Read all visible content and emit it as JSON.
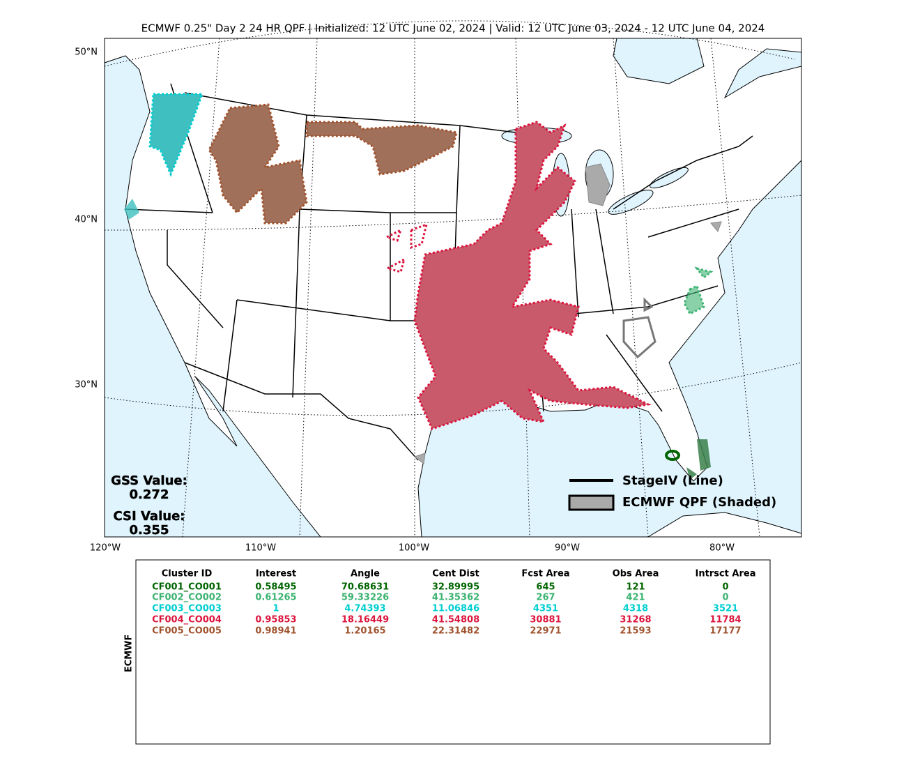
{
  "header": {
    "title": "ECMWF 0.25\" Day 2 24 HR QPF | Initialized: 12 UTC June 02, 2024 | Valid: 12 UTC June 03, 2024 - 12 UTC June 04, 2024"
  },
  "map": {
    "lat_labels": [
      "50°N",
      "40°N",
      "30°N"
    ],
    "lon_labels": [
      "120°W",
      "110°W",
      "100°W",
      "90°W",
      "80°W"
    ],
    "scores": [
      {
        "label": "GSS Value:",
        "value": "0.272"
      },
      {
        "label": "CSI Value:",
        "value": "0.355"
      }
    ],
    "legend": [
      "StageIV (Line)",
      "ECMWF QPF (Shaded)"
    ]
  },
  "table": {
    "side_label": "ECMWF",
    "columns": [
      "Cluster ID",
      "Interest",
      "Angle",
      "Cent Dist",
      "Fcst Area",
      "Obs Area",
      "Intrsct Area"
    ],
    "rows": [
      {
        "color": "#006400",
        "values": [
          "CF001_CO001",
          0.58495,
          70.68631,
          32.89995,
          645,
          121,
          0
        ]
      },
      {
        "color": "#3cb371",
        "values": [
          "CF002_CO002",
          0.61265,
          59.33226,
          41.35362,
          267,
          421,
          0
        ]
      },
      {
        "color": "#00ced1",
        "values": [
          "CF003_CO003",
          1,
          4.74393,
          11.06846,
          4351,
          4318,
          3521
        ]
      },
      {
        "color": "#dc143c",
        "values": [
          "CF004_CO004",
          0.95853,
          18.16449,
          41.54808,
          30881,
          31268,
          11784
        ]
      },
      {
        "color": "#a0522d",
        "values": [
          "CF005_CO005",
          0.98941,
          1.20165,
          22.31482,
          22971,
          21593,
          17177
        ]
      }
    ]
  }
}
